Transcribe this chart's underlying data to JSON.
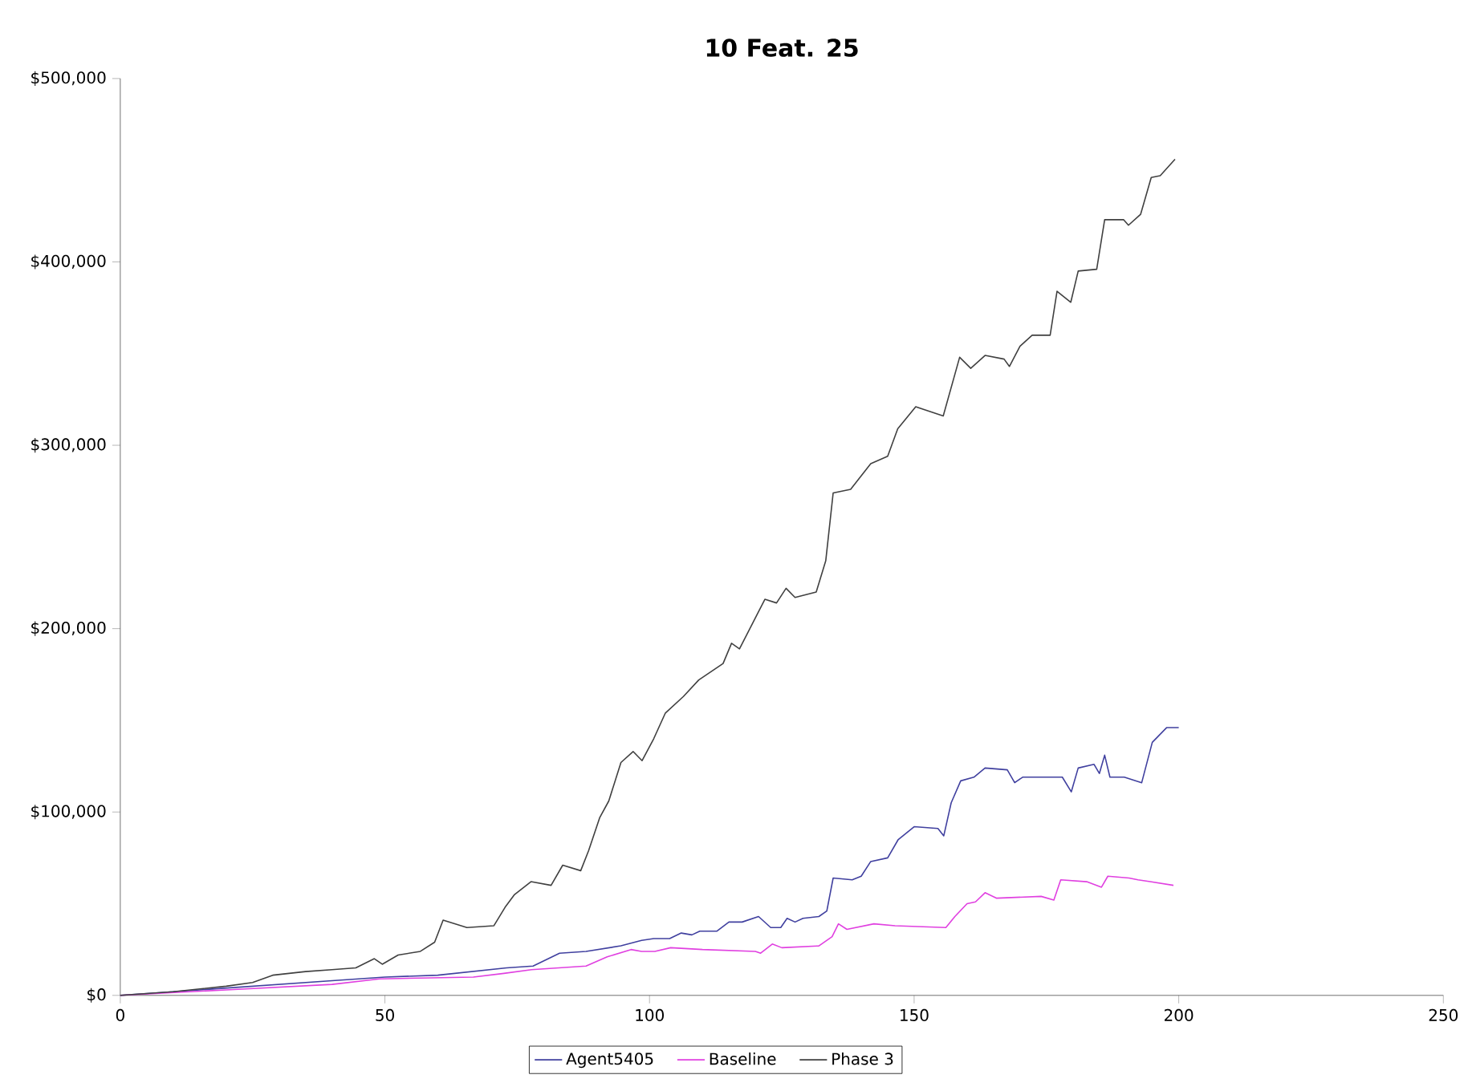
{
  "chart_data": {
    "type": "line",
    "title": "10 Feat. 25",
    "xlim": [
      0,
      250
    ],
    "xticks": [
      0,
      50,
      100,
      150,
      200,
      250
    ],
    "ylim": [
      0,
      500000
    ],
    "yticks": [
      {
        "value": 0,
        "label": "$0"
      },
      {
        "value": 100000,
        "label": "$100,000"
      },
      {
        "value": 200000,
        "label": "$200,000"
      },
      {
        "value": 300000,
        "label": "$300,000"
      },
      {
        "value": 400000,
        "label": "$400,000"
      },
      {
        "value": 500000,
        "label": "$500,000"
      }
    ],
    "grid": false,
    "legend": "bottom",
    "marker": "none",
    "line_style": "solid",
    "series": [
      {
        "name": "Agent5405",
        "color": "#40409f",
        "x": [
          0,
          20,
          40,
          50,
          60,
          73,
          78,
          83,
          88,
          94.6,
          98.5,
          100.8,
          103.8,
          106,
          108,
          109.5,
          112.7,
          115,
          117.5,
          120.6,
          122.9,
          124.8,
          126,
          127.5,
          129,
          132,
          133.5,
          134.7,
          138.3,
          140,
          141.8,
          145,
          147,
          150,
          154.5,
          155.6,
          157,
          158.8,
          161.3,
          163.4,
          167.6,
          169,
          170.5,
          178,
          179.7,
          181,
          184,
          185,
          186,
          187,
          189.7,
          193,
          195,
          197.7,
          200
        ],
        "values": [
          0,
          4000,
          8000,
          10000,
          11000,
          15000,
          16000,
          23000,
          24000,
          27000,
          30000,
          31000,
          31000,
          34000,
          33000,
          35000,
          35000,
          40000,
          40000,
          43000,
          37000,
          37000,
          42000,
          40000,
          42000,
          43000,
          46000,
          64000,
          63000,
          65000,
          73000,
          75000,
          85000,
          92000,
          91000,
          87000,
          105000,
          117000,
          119000,
          124000,
          123000,
          116000,
          119000,
          119000,
          111000,
          124000,
          126000,
          121000,
          131000,
          119000,
          119000,
          116000,
          138000,
          146000,
          146000
        ]
      },
      {
        "name": "Baseline",
        "color": "#e040e0",
        "x": [
          0,
          20,
          40,
          49,
          66.7,
          72.5,
          77.7,
          88,
          92,
          96.5,
          98.5,
          101,
          104,
          110,
          120,
          121,
          123.2,
          125,
          132,
          134.5,
          135.7,
          137.3,
          142.4,
          146.4,
          156,
          157.7,
          160,
          161.6,
          163.4,
          165.6,
          174,
          176.4,
          177.7,
          182.6,
          185.4,
          186.6,
          190.6,
          192.3,
          194.6,
          199
        ],
        "values": [
          0,
          3000,
          6000,
          9000,
          10000,
          12000,
          14000,
          16000,
          21000,
          25000,
          24000,
          24000,
          26000,
          25000,
          24000,
          23000,
          28000,
          26000,
          27000,
          32000,
          39000,
          36000,
          39000,
          38000,
          37000,
          43000,
          50000,
          51000,
          56000,
          53000,
          54000,
          52000,
          63000,
          62000,
          59000,
          65000,
          64000,
          63000,
          62000,
          60000
        ]
      },
      {
        "name": "Phase 3",
        "color": "#404040",
        "x": [
          0,
          10,
          20,
          25,
          28.8,
          35,
          40,
          44.5,
          48,
          49.5,
          52.5,
          56.7,
          59.4,
          61,
          65.5,
          70.6,
          72.7,
          74.5,
          77.6,
          81.4,
          83.6,
          87,
          88.5,
          90.6,
          92.3,
          94.6,
          96.9,
          98.6,
          100.8,
          103,
          106.4,
          109.3,
          113.9,
          115.5,
          117,
          121.8,
          124,
          125.8,
          127.5,
          131.5,
          133.3,
          134.7,
          138,
          141.8,
          145,
          146.9,
          150.3,
          155.5,
          158.6,
          160.7,
          163.4,
          167,
          168,
          170,
          172.3,
          175.7,
          177,
          179.6,
          181,
          184.5,
          186,
          189.6,
          190.5,
          192.8,
          194.8,
          196.5,
          199.3
        ],
        "values": [
          0,
          2000,
          5000,
          7000,
          11000,
          13000,
          14000,
          15000,
          20000,
          17000,
          22000,
          24000,
          29000,
          41000,
          37000,
          38000,
          48000,
          55000,
          62000,
          60000,
          71000,
          68000,
          79000,
          97000,
          106000,
          127000,
          133000,
          128000,
          140000,
          154000,
          163000,
          172000,
          181000,
          192000,
          189000,
          216000,
          214000,
          222000,
          217000,
          220000,
          237000,
          274000,
          276000,
          290000,
          294000,
          309000,
          321000,
          316000,
          348000,
          342000,
          349000,
          347000,
          343000,
          354000,
          360000,
          360000,
          384000,
          378000,
          395000,
          396000,
          423000,
          423000,
          420000,
          426000,
          446000,
          447000,
          456000
        ]
      }
    ]
  }
}
